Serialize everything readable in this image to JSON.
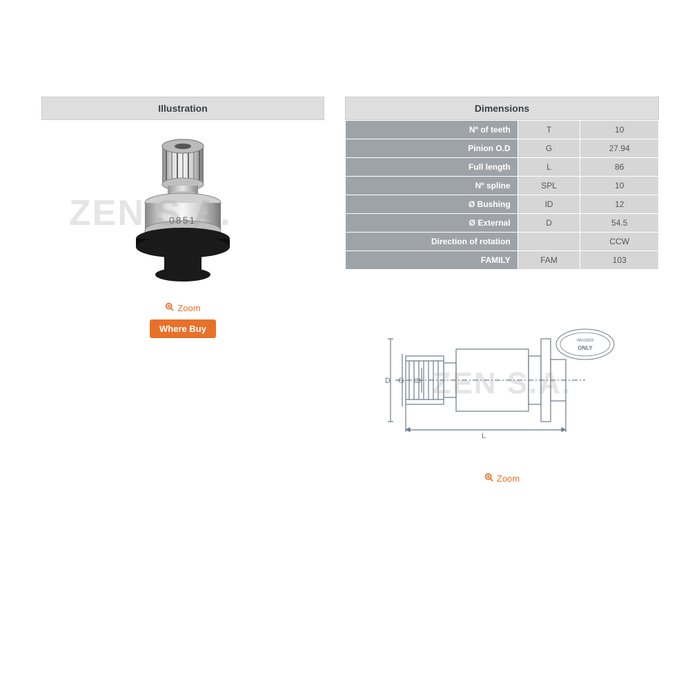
{
  "illustration": {
    "header": "Illustration",
    "zoom_label": "Zoom",
    "where_buy_label": "Where Buy",
    "watermark": "ZEN S.A.",
    "part_number": "0851"
  },
  "dimensions": {
    "header": "Dimensions",
    "rows": [
      {
        "label": "Nº of teeth",
        "code": "T",
        "value": "10"
      },
      {
        "label": "Pinion O.D",
        "code": "G",
        "value": "27.94"
      },
      {
        "label": "Full length",
        "code": "L",
        "value": "86"
      },
      {
        "label": "Nº spline",
        "code": "SPL",
        "value": "10"
      },
      {
        "label": "Ø Bushing",
        "code": "ID",
        "value": "12"
      },
      {
        "label": "Ø External",
        "code": "D",
        "value": "54.5"
      },
      {
        "label": "Direction of rotation",
        "code": "",
        "value": "CCW"
      },
      {
        "label": "FAMILY",
        "code": "FAM",
        "value": "103"
      }
    ],
    "zoom_label": "Zoom",
    "watermark": "ZEN S.A.",
    "diagram_labels": {
      "D": "D",
      "G": "G",
      "ID": "ID",
      "L": "L"
    },
    "badge_text": "IMAGEM ONLY"
  },
  "colors": {
    "accent": "#e8712a",
    "header_bg": "#dedede",
    "header_text": "#3b3f44",
    "label_bg": "#9ea3a8",
    "cell_bg": "#d6d6d6",
    "cell_text": "#555555",
    "metal_light": "#d8d8d8",
    "metal_mid": "#a8a8a8",
    "metal_dark": "#707070",
    "black_part": "#1a1a1a",
    "diagram_line": "#6b7a8a"
  }
}
